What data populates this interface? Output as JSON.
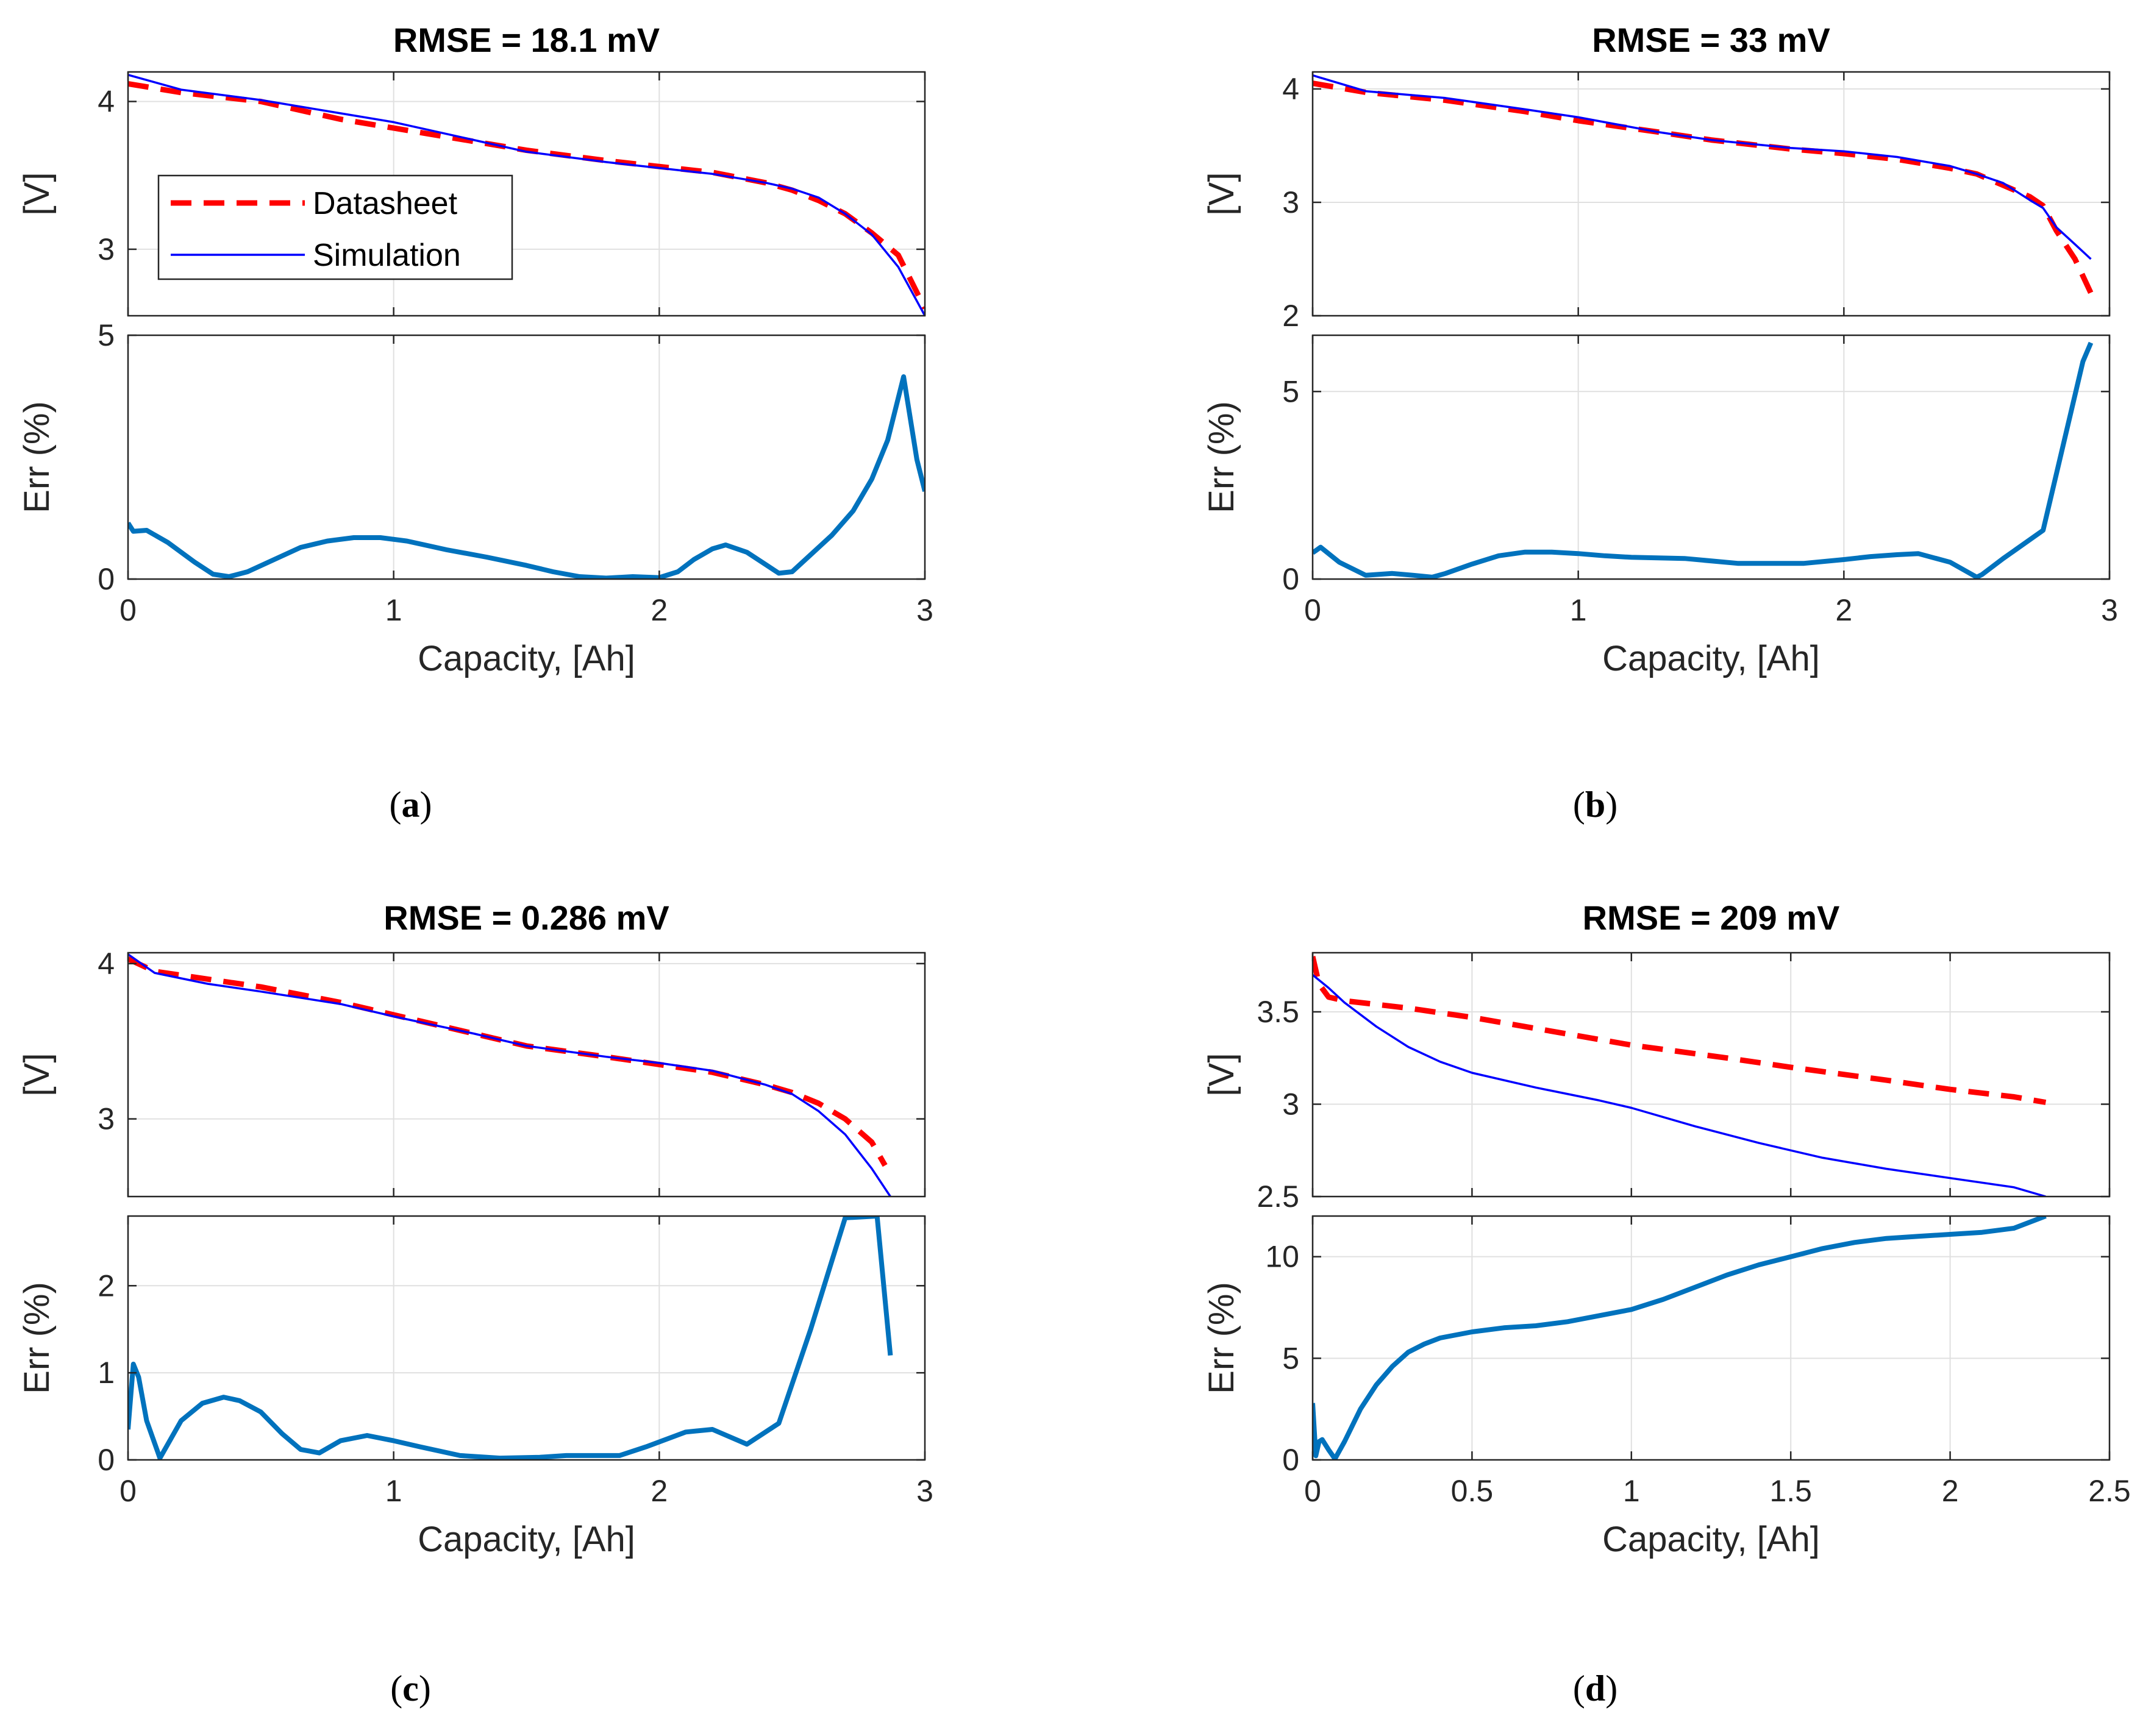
{
  "colors": {
    "datasheet": "#ff0000",
    "simulation": "#0000ff",
    "error": "#0072bd",
    "grid": "#e0e0e0",
    "axis": "#262626"
  },
  "chart_data": [
    {
      "panel": "a",
      "caption_letter": "a",
      "type": "line",
      "title": "RMSE = 18.1 mV",
      "xlabel": "Capacity, [Ah]",
      "xlim": [
        0,
        3
      ],
      "xticks": [
        0,
        1,
        2,
        3
      ],
      "grid": true,
      "legend": {
        "placement": "bottom-left",
        "entries": [
          {
            "series": "datasheet",
            "label": "Datasheet"
          },
          {
            "series": "simulation",
            "label": "Simulation"
          }
        ]
      },
      "voltage": {
        "ylabel": "[V]",
        "ylim": [
          2.55,
          4.2
        ],
        "yticks": [
          3,
          4
        ],
        "series": [
          {
            "key": "datasheet",
            "name": "Datasheet",
            "style": "dashed",
            "x": [
              0,
              0.2,
              0.5,
              0.8,
              1.0,
              1.3,
              1.5,
              1.8,
              2.0,
              2.2,
              2.4,
              2.5,
              2.6,
              2.7,
              2.8,
              2.9,
              3.0
            ],
            "y": [
              4.12,
              4.06,
              4.0,
              3.88,
              3.82,
              3.73,
              3.67,
              3.6,
              3.56,
              3.52,
              3.45,
              3.4,
              3.33,
              3.24,
              3.11,
              2.96,
              2.6
            ]
          },
          {
            "key": "simulation",
            "name": "Simulation",
            "style": "solid",
            "x": [
              0,
              0.2,
              0.5,
              0.8,
              1.0,
              1.3,
              1.5,
              1.8,
              2.0,
              2.2,
              2.4,
              2.5,
              2.6,
              2.7,
              2.8,
              2.9,
              3.0
            ],
            "y": [
              4.18,
              4.08,
              4.01,
              3.92,
              3.86,
              3.74,
              3.66,
              3.59,
              3.55,
              3.51,
              3.45,
              3.41,
              3.35,
              3.24,
              3.1,
              2.88,
              2.55
            ]
          }
        ]
      },
      "error": {
        "ylabel": "Err (%)",
        "ylim": [
          0,
          5
        ],
        "yticks": [
          0,
          5
        ],
        "series": [
          {
            "key": "error",
            "name": "Err",
            "x": [
              0,
              0.02,
              0.07,
              0.15,
              0.25,
              0.32,
              0.38,
              0.45,
              0.55,
              0.65,
              0.75,
              0.85,
              0.95,
              1.05,
              1.2,
              1.35,
              1.5,
              1.6,
              1.7,
              1.8,
              1.9,
              2.0,
              2.07,
              2.13,
              2.2,
              2.25,
              2.33,
              2.4,
              2.45,
              2.5,
              2.57,
              2.65,
              2.73,
              2.8,
              2.86,
              2.92,
              2.97,
              3.0
            ],
            "y": [
              1.15,
              0.98,
              1.0,
              0.75,
              0.35,
              0.1,
              0.05,
              0.15,
              0.4,
              0.65,
              0.78,
              0.85,
              0.85,
              0.78,
              0.6,
              0.45,
              0.28,
              0.15,
              0.05,
              0.02,
              0.05,
              0.03,
              0.15,
              0.4,
              0.62,
              0.7,
              0.55,
              0.3,
              0.12,
              0.15,
              0.5,
              0.9,
              1.4,
              2.05,
              2.85,
              4.15,
              2.45,
              1.8
            ]
          }
        ]
      }
    },
    {
      "panel": "b",
      "caption_letter": "b",
      "type": "line",
      "title": "RMSE = 33 mV",
      "xlabel": "Capacity, [Ah]",
      "xlim": [
        0,
        3
      ],
      "xticks": [
        0,
        1,
        2,
        3
      ],
      "grid": true,
      "voltage": {
        "ylabel": "[V]",
        "ylim": [
          2,
          4.15
        ],
        "yticks": [
          2,
          3,
          4
        ],
        "series": [
          {
            "key": "datasheet",
            "name": "Datasheet",
            "style": "dashed",
            "x": [
              0,
              0.2,
              0.5,
              0.8,
              1.0,
              1.3,
              1.5,
              1.8,
              2.0,
              2.2,
              2.4,
              2.5,
              2.6,
              2.7,
              2.75,
              2.8,
              2.87,
              2.93
            ],
            "y": [
              4.05,
              3.97,
              3.9,
              3.8,
              3.72,
              3.62,
              3.55,
              3.47,
              3.43,
              3.38,
              3.3,
              3.25,
              3.15,
              3.05,
              2.97,
              2.75,
              2.5,
              2.2
            ]
          },
          {
            "key": "simulation",
            "name": "Simulation",
            "style": "solid",
            "x": [
              0,
              0.2,
              0.5,
              0.8,
              1.0,
              1.3,
              1.5,
              1.8,
              2.0,
              2.2,
              2.4,
              2.5,
              2.6,
              2.7,
              2.75,
              2.8,
              2.87,
              2.93
            ],
            "y": [
              4.12,
              3.98,
              3.92,
              3.82,
              3.75,
              3.62,
              3.55,
              3.48,
              3.45,
              3.4,
              3.32,
              3.25,
              3.17,
              3.02,
              2.95,
              2.78,
              2.63,
              2.5
            ]
          }
        ]
      },
      "error": {
        "ylabel": "Err (%)",
        "ylim": [
          0,
          6.5
        ],
        "yticks": [
          0,
          5
        ],
        "series": [
          {
            "key": "error",
            "name": "Err",
            "x": [
              0,
              0.03,
              0.1,
              0.2,
              0.3,
              0.38,
              0.45,
              0.5,
              0.6,
              0.7,
              0.8,
              0.9,
              1.0,
              1.1,
              1.2,
              1.4,
              1.6,
              1.7,
              1.85,
              2.0,
              2.1,
              2.2,
              2.28,
              2.4,
              2.5,
              2.52,
              2.6,
              2.65,
              2.75,
              2.83,
              2.9,
              2.93
            ],
            "y": [
              0.7,
              0.85,
              0.45,
              0.1,
              0.15,
              0.1,
              0.05,
              0.15,
              0.4,
              0.62,
              0.72,
              0.72,
              0.68,
              0.62,
              0.58,
              0.55,
              0.42,
              0.42,
              0.42,
              0.52,
              0.6,
              0.65,
              0.68,
              0.45,
              0.05,
              0.12,
              0.55,
              0.8,
              1.3,
              3.7,
              5.8,
              6.3
            ]
          }
        ]
      }
    },
    {
      "panel": "c",
      "caption_letter": "c",
      "type": "line",
      "title": "RMSE = 0.286 mV",
      "xlabel": "Capacity, [Ah]",
      "xlim": [
        0,
        3
      ],
      "xticks": [
        0,
        1,
        2,
        3
      ],
      "grid": true,
      "voltage": {
        "ylabel": "[V]",
        "ylim": [
          2.5,
          4.07
        ],
        "yticks": [
          3,
          4
        ],
        "series": [
          {
            "key": "datasheet",
            "name": "Datasheet",
            "style": "dashed",
            "x": [
              0,
              0.1,
              0.3,
              0.5,
              0.8,
              1.0,
              1.3,
              1.5,
              1.8,
              2.0,
              2.2,
              2.4,
              2.5,
              2.6,
              2.7,
              2.8,
              2.85
            ],
            "y": [
              4.03,
              3.95,
              3.9,
              3.85,
              3.75,
              3.67,
              3.55,
              3.47,
              3.4,
              3.35,
              3.3,
              3.22,
              3.17,
              3.1,
              3.0,
              2.85,
              2.7
            ]
          },
          {
            "key": "simulation",
            "name": "Simulation",
            "style": "solid",
            "x": [
              0,
              0.1,
              0.3,
              0.5,
              0.8,
              1.0,
              1.3,
              1.5,
              1.8,
              2.0,
              2.2,
              2.4,
              2.5,
              2.6,
              2.7,
              2.8,
              2.87
            ],
            "y": [
              4.06,
              3.94,
              3.87,
              3.82,
              3.74,
              3.66,
              3.55,
              3.47,
              3.4,
              3.36,
              3.31,
              3.22,
              3.16,
              3.05,
              2.9,
              2.68,
              2.5
            ]
          }
        ]
      },
      "error": {
        "ylabel": "Err (%)",
        "ylim": [
          0,
          2.8
        ],
        "yticks": [
          0,
          1,
          2
        ],
        "series": [
          {
            "key": "error",
            "name": "Err",
            "x": [
              0,
              0.02,
              0.04,
              0.07,
              0.12,
              0.2,
              0.28,
              0.36,
              0.42,
              0.5,
              0.58,
              0.65,
              0.72,
              0.8,
              0.9,
              1.0,
              1.1,
              1.25,
              1.4,
              1.55,
              1.65,
              1.75,
              1.85,
              1.95,
              2.1,
              2.2,
              2.33,
              2.45,
              2.57,
              2.7,
              2.82,
              2.87
            ],
            "y": [
              0.35,
              1.1,
              0.95,
              0.45,
              0.02,
              0.45,
              0.65,
              0.72,
              0.68,
              0.55,
              0.3,
              0.12,
              0.08,
              0.22,
              0.28,
              0.22,
              0.15,
              0.05,
              0.02,
              0.03,
              0.05,
              0.05,
              0.05,
              0.15,
              0.32,
              0.35,
              0.18,
              0.42,
              1.5,
              2.78,
              2.8,
              1.2
            ]
          }
        ]
      }
    },
    {
      "panel": "d",
      "caption_letter": "d",
      "type": "line",
      "title": "RMSE = 209 mV",
      "xlabel": "Capacity, [Ah]",
      "xlim": [
        0,
        2.5
      ],
      "xticks": [
        0,
        0.5,
        1,
        1.5,
        2,
        2.5
      ],
      "grid": true,
      "voltage": {
        "ylabel": "[V]",
        "ylim": [
          2.5,
          3.82
        ],
        "yticks": [
          2.5,
          3,
          3.5
        ],
        "series": [
          {
            "key": "datasheet",
            "name": "Datasheet",
            "style": "dashed",
            "x": [
              0,
              0.02,
              0.05,
              0.1,
              0.3,
              0.5,
              0.8,
              1.0,
              1.3,
              1.5,
              1.8,
              2.0,
              2.2,
              2.3
            ],
            "y": [
              3.8,
              3.65,
              3.58,
              3.56,
              3.52,
              3.47,
              3.38,
              3.32,
              3.25,
              3.2,
              3.13,
              3.08,
              3.04,
              3.01
            ]
          },
          {
            "key": "simulation",
            "name": "Simulation",
            "style": "solid",
            "x": [
              0,
              0.05,
              0.1,
              0.2,
              0.3,
              0.4,
              0.5,
              0.7,
              0.9,
              1.0,
              1.2,
              1.4,
              1.6,
              1.8,
              2.0,
              2.2,
              2.3
            ],
            "y": [
              3.7,
              3.63,
              3.55,
              3.42,
              3.31,
              3.23,
              3.17,
              3.09,
              3.02,
              2.98,
              2.88,
              2.79,
              2.71,
              2.65,
              2.6,
              2.55,
              2.5
            ]
          }
        ]
      },
      "error": {
        "ylabel": "Err (%)",
        "ylim": [
          0,
          12
        ],
        "yticks": [
          0,
          5,
          10
        ],
        "series": [
          {
            "key": "error",
            "name": "Err",
            "x": [
              0,
              0.01,
              0.02,
              0.03,
              0.05,
              0.07,
              0.1,
              0.15,
              0.2,
              0.25,
              0.3,
              0.35,
              0.4,
              0.5,
              0.6,
              0.7,
              0.8,
              0.9,
              1.0,
              1.1,
              1.2,
              1.3,
              1.4,
              1.5,
              1.6,
              1.7,
              1.8,
              1.9,
              2.0,
              2.1,
              2.2,
              2.3
            ],
            "y": [
              2.8,
              0.2,
              0.9,
              1.0,
              0.5,
              0.05,
              0.9,
              2.5,
              3.7,
              4.6,
              5.3,
              5.7,
              6.0,
              6.3,
              6.5,
              6.6,
              6.8,
              7.1,
              7.4,
              7.9,
              8.5,
              9.1,
              9.6,
              10.0,
              10.4,
              10.7,
              10.9,
              11.0,
              11.1,
              11.2,
              11.4,
              12.0
            ]
          }
        ]
      }
    }
  ]
}
